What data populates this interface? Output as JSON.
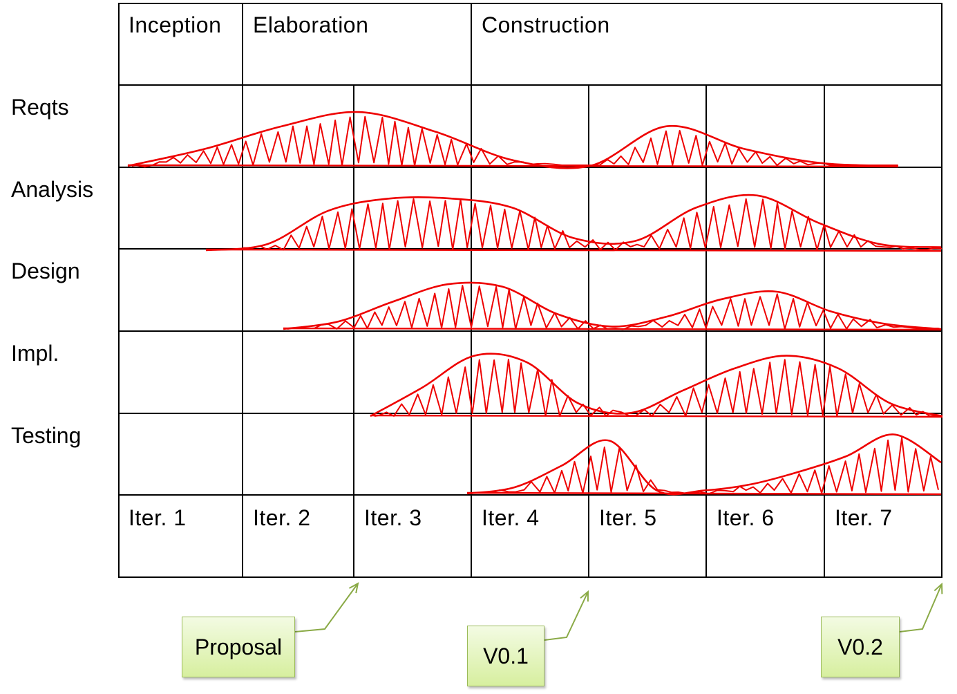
{
  "phases": [
    "Inception",
    "Elaboration",
    "Construction"
  ],
  "workflows": [
    "Reqts",
    "Analysis",
    "Design",
    "Impl.",
    "Testing"
  ],
  "iterations": [
    "Iter. 1",
    "Iter. 2",
    "Iter. 3",
    "Iter. 4",
    "Iter. 5",
    "Iter. 6",
    "Iter. 7"
  ],
  "milestones": [
    "Proposal",
    "V0.1",
    "V0.2"
  ],
  "effort": {
    "color": "#ee0000",
    "Reqts": [
      0.0,
      0.3,
      0.7,
      0.95,
      0.6,
      0.1,
      0.0,
      0.7,
      0.3,
      0.05,
      0.0
    ],
    "Analysis": [
      0.0,
      0.1,
      0.65,
      0.85,
      0.85,
      0.7,
      0.2,
      0.15,
      0.7,
      0.9,
      0.45,
      0.1,
      0.05
    ],
    "Design": [
      0.0,
      0.15,
      0.55,
      0.9,
      0.85,
      0.3,
      0.05,
      0.25,
      0.6,
      0.75,
      0.35,
      0.1,
      0.0
    ],
    "Impl.": [
      0.0,
      0.45,
      0.95,
      0.85,
      0.2,
      0.05,
      0.4,
      0.75,
      0.95,
      0.75,
      0.2,
      0.0
    ],
    "Testing": [
      0.0,
      0.1,
      0.45,
      0.85,
      0.05,
      0.05,
      0.15,
      0.35,
      0.6,
      0.95,
      0.5
    ]
  },
  "grid_color": "#000000",
  "arrow_color": "#8aaa46"
}
